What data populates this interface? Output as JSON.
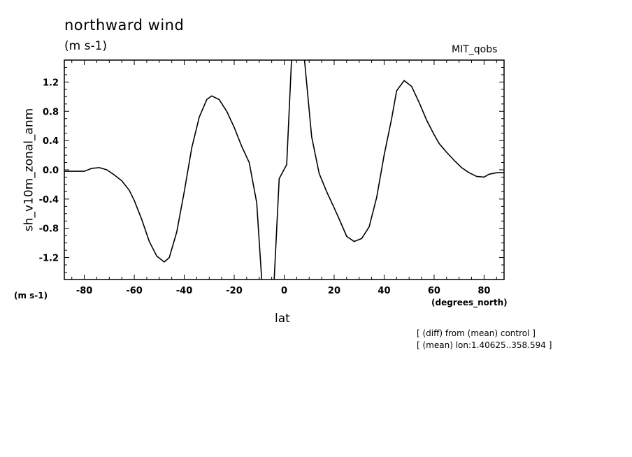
{
  "chart_data": {
    "type": "line",
    "title": "northward wind",
    "subtitle": "(m s-1)",
    "model_label": "MIT_qobs",
    "ylabel": "sh_v10m_zonal_anm",
    "yunits": "(m s-1)",
    "xlabel": "lat",
    "xunits": "(degrees_north)",
    "notes": [
      "[ (diff) from (mean) control ]",
      "[ (mean) lon:1.40625..358.594 ]"
    ],
    "xlim": [
      -88,
      88
    ],
    "ylim": [
      -1.5,
      1.5
    ],
    "xticks": [
      -80,
      -60,
      -40,
      -20,
      0,
      20,
      40,
      60,
      80
    ],
    "xtick_labels": [
      "-80",
      "-60",
      "-40",
      "-20",
      "0",
      "20",
      "40",
      "60",
      "80"
    ],
    "yticks": [
      -1.2,
      -0.8,
      -0.4,
      0.0,
      0.4,
      0.8,
      1.2
    ],
    "ytick_labels": [
      "-1.2",
      "-0.8",
      "-0.4",
      "0.0",
      "0.4",
      "0.8",
      "1.2"
    ],
    "grid": false,
    "series": [
      {
        "x": [
          -88,
          -85,
          -80,
          -77,
          -74,
          -71,
          -68,
          -65,
          -62,
          -60,
          -57,
          -54,
          -51,
          -48,
          -46,
          -43,
          -40,
          -37,
          -34,
          -31,
          -29,
          -26,
          -23,
          -20,
          -17,
          -14,
          -11,
          -9,
          -7,
          -4,
          -2,
          1,
          3,
          6,
          8,
          11,
          14,
          17,
          20,
          23,
          25,
          28,
          31,
          34,
          37,
          40,
          43,
          45,
          48,
          51,
          54,
          57,
          60,
          62,
          65,
          68,
          71,
          74,
          77,
          80,
          82,
          85,
          88
        ],
        "y": [
          -0.02,
          -0.02,
          -0.02,
          0.02,
          0.03,
          0.0,
          -0.07,
          -0.15,
          -0.28,
          -0.42,
          -0.68,
          -0.98,
          -1.18,
          -1.26,
          -1.2,
          -0.85,
          -0.3,
          0.3,
          0.72,
          0.96,
          1.01,
          0.96,
          0.8,
          0.58,
          0.32,
          0.1,
          -0.45,
          -1.5,
          -2.2,
          -1.5,
          -0.12,
          0.07,
          1.55,
          1.8,
          1.55,
          0.45,
          -0.05,
          -0.3,
          -0.52,
          -0.75,
          -0.91,
          -0.98,
          -0.94,
          -0.78,
          -0.38,
          0.2,
          0.7,
          1.08,
          1.22,
          1.14,
          0.92,
          0.68,
          0.48,
          0.36,
          0.24,
          0.13,
          0.03,
          -0.04,
          -0.09,
          -0.1,
          -0.06,
          -0.04,
          -0.04
        ]
      }
    ]
  }
}
